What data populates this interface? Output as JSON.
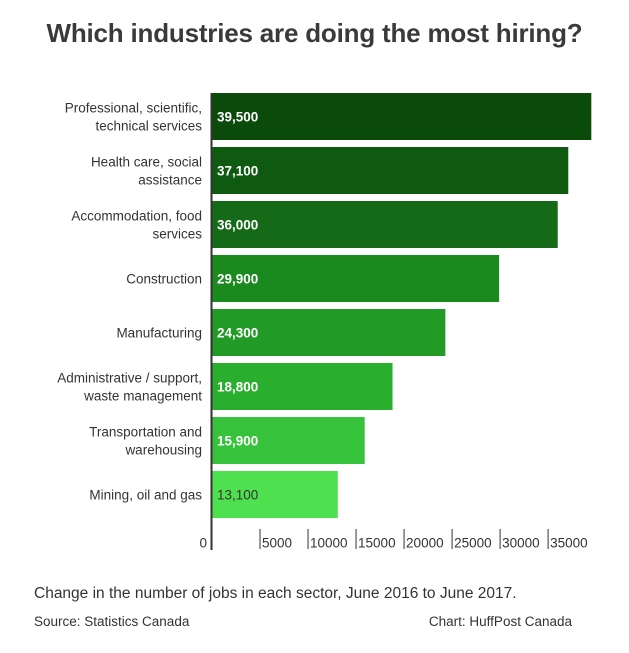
{
  "chart_data": {
    "type": "bar",
    "orientation": "horizontal",
    "title": "Which industries are doing the most hiring?",
    "categories": [
      [
        "Professional, scientific,",
        "technical services"
      ],
      [
        "Health care, social",
        "assistance"
      ],
      [
        "Accommodation, food",
        "services"
      ],
      [
        "Construction"
      ],
      [
        "Manufacturing"
      ],
      [
        "Administrative / support,",
        "waste management"
      ],
      [
        "Transportation and",
        "warehousing"
      ],
      [
        "Mining, oil and gas"
      ]
    ],
    "values": [
      39500,
      37100,
      36000,
      29900,
      24300,
      18800,
      15900,
      13100
    ],
    "value_labels": [
      "39,500",
      "37,100",
      "36,000",
      "29,900",
      "24,300",
      "18,800",
      "15,900",
      "13,100"
    ],
    "bar_colors": [
      "#0a4a0a",
      "#0f5a11",
      "#146a16",
      "#1a8a1e",
      "#229a26",
      "#2aae2e",
      "#36c23a",
      "#4fe04f"
    ],
    "value_label_colors": [
      "#ffffff",
      "#ffffff",
      "#ffffff",
      "#ffffff",
      "#ffffff",
      "#ffffff",
      "#ffffff",
      "#333333"
    ],
    "x_ticks": [
      0,
      5000,
      10000,
      15000,
      20000,
      25000,
      30000,
      35000
    ],
    "x_tick_labels": [
      "0",
      "5000",
      "10000",
      "15000",
      "20000",
      "25000",
      "30000",
      "35000"
    ],
    "xlim": [
      0,
      40300
    ],
    "grid": false,
    "caption": "Change in the number of jobs in each sector, June 2016 to June 2017.",
    "source": "Source: Statistics Canada",
    "credit": "Chart: HuffPost Canada"
  }
}
